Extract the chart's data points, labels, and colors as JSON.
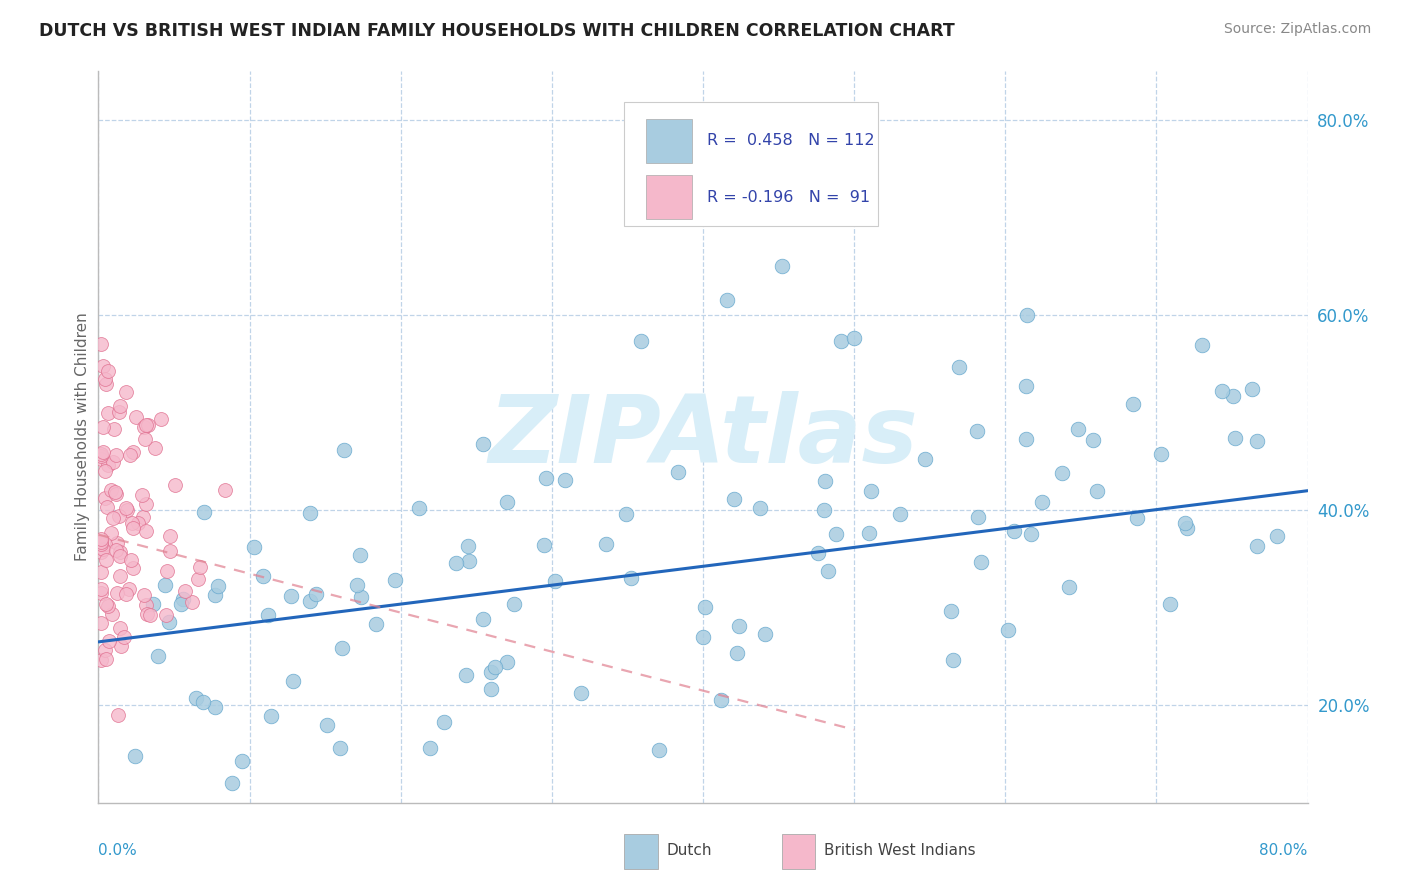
{
  "title": "DUTCH VS BRITISH WEST INDIAN FAMILY HOUSEHOLDS WITH CHILDREN CORRELATION CHART",
  "source_text": "Source: ZipAtlas.com",
  "ylabel": "Family Households with Children",
  "dutch_color": "#a8cce0",
  "dutch_edge_color": "#6aaacf",
  "dutch_line_color": "#2266bb",
  "bwi_color": "#f5b8cb",
  "bwi_edge_color": "#e07090",
  "bwi_line_color": "#e08090",
  "watermark_text": "ZIPAtlas",
  "watermark_color": "#d8eef8",
  "background_color": "#ffffff",
  "plot_bg_color": "#ffffff",
  "grid_color": "#c0d4e8",
  "xmin": 0.0,
  "xmax": 0.8,
  "ymin": 0.1,
  "ymax": 0.85,
  "dutch_R": 0.458,
  "dutch_N": 112,
  "bwi_R": -0.196,
  "bwi_N": 91,
  "right_ytick_color": "#3399cc",
  "bottom_xlabel_color": "#3399cc",
  "legend_text_color": "#3344aa",
  "legend_R1": "R =  0.458",
  "legend_N1": "N = 112",
  "legend_R2": "R = -0.196",
  "legend_N2": "N =  91",
  "legend_label1": "Dutch",
  "legend_label2": "British West Indians"
}
